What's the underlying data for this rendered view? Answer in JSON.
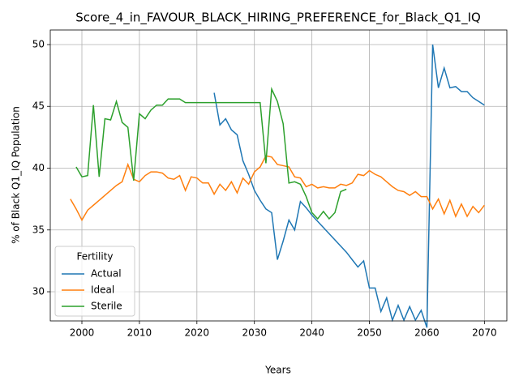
{
  "chart_data": {
    "type": "line",
    "title": "Score_4_in_FAVOUR_BLACK_HIRING_PREFERENCE_for_Black_Q1_IQ",
    "xlabel": "Years",
    "ylabel": "% of Black Q1_IQ Population",
    "x": [
      1998,
      1999,
      2000,
      2001,
      2002,
      2003,
      2004,
      2005,
      2006,
      2007,
      2008,
      2009,
      2010,
      2011,
      2012,
      2013,
      2014,
      2015,
      2016,
      2017,
      2018,
      2019,
      2020,
      2021,
      2022,
      2023,
      2024,
      2025,
      2026,
      2027,
      2028,
      2029,
      2030,
      2031,
      2032,
      2033,
      2034,
      2035,
      2036,
      2037,
      2038,
      2039,
      2040,
      2041,
      2042,
      2043,
      2044,
      2045,
      2046,
      2047,
      2048,
      2049,
      2050,
      2051,
      2052,
      2053,
      2054,
      2055,
      2056,
      2057,
      2058,
      2059,
      2060,
      2061,
      2062,
      2063,
      2064,
      2065,
      2066,
      2067,
      2068,
      2069,
      2070
    ],
    "series": [
      {
        "name": "Actual",
        "color": "#1f77b4",
        "values": [
          null,
          null,
          null,
          null,
          null,
          null,
          null,
          null,
          null,
          null,
          null,
          null,
          null,
          null,
          null,
          null,
          null,
          null,
          null,
          null,
          null,
          null,
          null,
          null,
          null,
          46.1,
          43.5,
          44.0,
          43.1,
          42.7,
          40.6,
          39.5,
          38.2,
          37.4,
          36.7,
          36.4,
          32.6,
          34.1,
          35.8,
          35.0,
          37.3,
          36.8,
          36.2,
          35.7,
          35.2,
          34.7,
          34.2,
          33.7,
          33.2,
          32.6,
          32.0,
          32.5,
          30.3,
          30.3,
          28.4,
          29.5,
          27.7,
          28.9,
          27.7,
          28.8,
          27.7,
          28.5,
          27.1,
          50.0,
          46.5,
          48.1,
          46.5,
          46.6,
          46.2,
          46.2,
          45.7,
          45.4,
          45.1
        ]
      },
      {
        "name": "Ideal",
        "color": "#ff7f0e",
        "values": [
          37.5,
          36.7,
          35.8,
          36.6,
          37.0,
          37.4,
          37.8,
          38.2,
          38.6,
          38.9,
          40.3,
          39.1,
          38.9,
          39.4,
          39.7,
          39.7,
          39.6,
          39.2,
          39.1,
          39.4,
          38.2,
          39.3,
          39.2,
          38.8,
          38.8,
          37.9,
          38.7,
          38.2,
          38.9,
          38.0,
          39.2,
          38.7,
          39.7,
          40.1,
          41.0,
          40.9,
          40.3,
          40.2,
          40.1,
          39.3,
          39.2,
          38.5,
          38.7,
          38.4,
          38.5,
          38.4,
          38.4,
          38.7,
          38.6,
          38.8,
          39.5,
          39.4,
          39.8,
          39.5,
          39.3,
          38.9,
          38.5,
          38.2,
          38.1,
          37.8,
          38.1,
          37.7,
          37.7,
          36.7,
          37.5,
          36.3,
          37.4,
          36.1,
          37.1,
          36.1,
          36.9,
          36.4,
          37.0
        ]
      },
      {
        "name": "Sterile",
        "color": "#2ca02c",
        "values": [
          null,
          40.1,
          39.3,
          39.4,
          45.1,
          39.3,
          44.0,
          43.9,
          45.4,
          43.7,
          43.3,
          39.0,
          44.4,
          44.0,
          44.7,
          45.1,
          45.1,
          45.6,
          45.6,
          45.6,
          45.3,
          45.3,
          45.3,
          45.3,
          45.3,
          45.3,
          45.3,
          45.3,
          45.3,
          45.3,
          45.3,
          45.3,
          45.3,
          45.3,
          40.4,
          46.4,
          45.4,
          43.6,
          38.8,
          38.9,
          38.7,
          37.7,
          36.4,
          35.9,
          36.5,
          35.9,
          36.4,
          38.1,
          38.3,
          null,
          null,
          null,
          null,
          null,
          null,
          null,
          null,
          null,
          null,
          null,
          null,
          null,
          null,
          null,
          null,
          null,
          null,
          null,
          null,
          null,
          null,
          null,
          null
        ]
      }
    ],
    "xlim": [
      1994.5,
      2073.9
    ],
    "xticks": [
      2000,
      2010,
      2020,
      2030,
      2040,
      2050,
      2060,
      2070
    ],
    "ylim": [
      27.64,
      51.18
    ],
    "yticks": [
      30,
      35,
      40,
      45,
      50
    ],
    "grid": true,
    "legend_title": "Fertility",
    "legend_loc": "lower left"
  }
}
